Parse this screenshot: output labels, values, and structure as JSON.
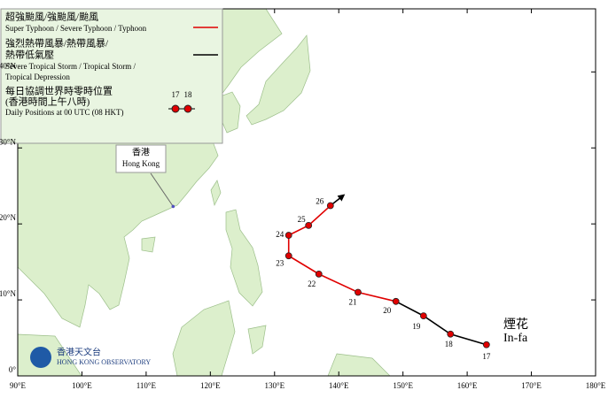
{
  "map": {
    "xlim": [
      90,
      180
    ],
    "ylim": [
      0,
      48.3
    ],
    "xticks": [
      {
        "value": 90,
        "label": "90°E"
      },
      {
        "value": 100,
        "label": "100°E"
      },
      {
        "value": 110,
        "label": "110°E"
      },
      {
        "value": 120,
        "label": "120°E"
      },
      {
        "value": 130,
        "label": "130°E"
      },
      {
        "value": 140,
        "label": "140°E"
      },
      {
        "value": 150,
        "label": "150°E"
      },
      {
        "value": 160,
        "label": "160°E"
      },
      {
        "value": 170,
        "label": "170°E"
      },
      {
        "value": 180,
        "label": "180°E"
      }
    ],
    "yticks": [
      {
        "value": 0,
        "label": "0°"
      },
      {
        "value": 10,
        "label": "10°N"
      },
      {
        "value": 20,
        "label": "20°N"
      },
      {
        "value": 30,
        "label": "30°N"
      },
      {
        "value": 40,
        "label": "40°N"
      }
    ],
    "track": [
      {
        "color": "#000000",
        "lon": [
          163.0,
          157.4,
          153.2,
          148.9
        ],
        "lat": [
          4.1,
          5.5,
          7.9,
          9.8
        ]
      },
      {
        "color": "#e00000",
        "lon": [
          148.9,
          143.0,
          136.9,
          132.2,
          132.2,
          135.3,
          138.7
        ],
        "lat": [
          9.8,
          11.0,
          13.4,
          15.8,
          18.5,
          19.8,
          22.4
        ]
      },
      {
        "color": "#000000",
        "lon": [
          138.7,
          140.8
        ],
        "lat": [
          22.4,
          23.8
        ]
      }
    ],
    "positions": {
      "labels": [
        "17",
        "18",
        "19",
        "20",
        "21",
        "22",
        "23",
        "24",
        "25",
        "26"
      ],
      "lon": [
        163.0,
        157.4,
        153.2,
        148.9,
        143.0,
        136.9,
        132.2,
        132.2,
        135.3,
        138.7
      ],
      "lat": [
        4.1,
        5.5,
        7.9,
        9.8,
        11.0,
        13.4,
        15.8,
        18.5,
        19.8,
        22.4
      ]
    },
    "storm_name": {
      "zh": "煙花",
      "en": "In-fa"
    },
    "hong_kong": {
      "zh": "香港",
      "en": "Hong Kong",
      "lon": 114.2,
      "lat": 22.3
    }
  },
  "legend": {
    "typhoon_zh": "超強颱風/強颱風/颱風",
    "typhoon_en": "Super Typhoon / Severe Typhoon / Typhoon",
    "typhoon_color": "#e00000",
    "storm_zh_1": "強烈熱帶風暴/熱帶風暴/",
    "storm_zh_2": "熱帶低氣壓",
    "storm_en_1": "Severe Tropical Storm / Tropical Storm /",
    "storm_en_2": "Tropical Depression",
    "storm_color": "#000000",
    "daily_zh_1": "每日協調世界時零時位置",
    "daily_zh_2": "(香港時間上午八時)",
    "daily_en": "Daily Positions at 00 UTC (08 HKT)",
    "sample_1": "17",
    "sample_2": "18"
  },
  "logo": {
    "zh": "香港天文台",
    "en": "HONG KONG OBSERVATORY"
  }
}
